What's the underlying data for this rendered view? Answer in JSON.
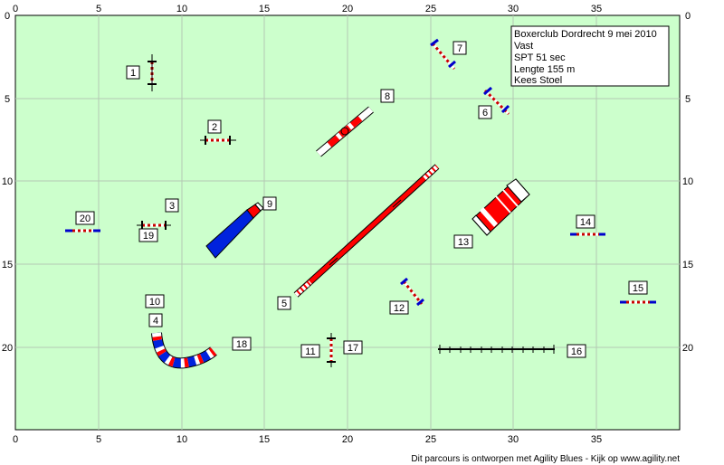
{
  "axis": {
    "x_ticks": [
      "0",
      "5",
      "10",
      "15",
      "20",
      "25",
      "30",
      "35"
    ],
    "y_ticks": [
      "0",
      "5",
      "10",
      "15",
      "20"
    ]
  },
  "info": {
    "title": "Boxerclub Dordrecht 9 mei 2010",
    "type": "Vast",
    "spt": "SPT 51 sec",
    "length": "Lengte 155 m",
    "judge": "Kees Stoel"
  },
  "numbers": [
    "1",
    "2",
    "3",
    "4",
    "5",
    "6",
    "7",
    "8",
    "9",
    "10",
    "11",
    "12",
    "13",
    "14",
    "15",
    "16",
    "17",
    "18",
    "19",
    "20"
  ],
  "footer": "Dit parcours is ontworpen met Agility Blues - Kijk op www.agility.net",
  "colors": {
    "field": "#ccffcc",
    "grid": "#b4c8b4",
    "bar_red": "#ff0000",
    "bar_blue": "#0000cc",
    "tunnel_blue": "#0022dd"
  }
}
